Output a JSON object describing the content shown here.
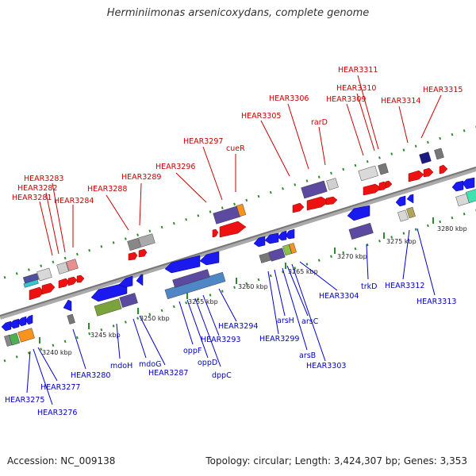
{
  "title": "Herminiimonas arsenicoxydans, complete genome",
  "footer": {
    "accession": "Accession: NC_009138",
    "topology": "Topology: circular; Length: 3,424,307 bp; Genes: 3,353"
  },
  "colors": {
    "forward_label": "#cc0000",
    "reverse_label": "#0000cc",
    "axis": "#888888",
    "dots": "#2e8b2e"
  },
  "ticks": [
    {
      "label": "3240 kbp"
    },
    {
      "label": "3245 kbp"
    },
    {
      "label": "3250 kbp"
    },
    {
      "label": "3255 kbp"
    },
    {
      "label": "3260 kbp"
    },
    {
      "label": "3265 kbp"
    },
    {
      "label": "3270 kbp"
    },
    {
      "label": "3275 kbp"
    },
    {
      "label": "3280 kbp"
    }
  ],
  "forward_labels": [
    "HEAR3283",
    "HEAR3282",
    "HEAR3281",
    "HEAR3284",
    "HEAR3288",
    "HEAR3289",
    "HEAR3296",
    "HEAR3297",
    "cueR",
    "HEAR3305",
    "HEAR3306",
    "rarD",
    "HEAR3309",
    "HEAR3310",
    "HEAR3311",
    "HEAR3314",
    "HEAR3315"
  ],
  "reverse_labels": [
    "HEAR3275",
    "HEAR3276",
    "HEAR3277",
    "HEAR3280",
    "mdoH",
    "mdoG",
    "HEAR3287",
    "oppF",
    "oppD",
    "dppC",
    "HEAR3293",
    "HEAR3294",
    "HEAR3299",
    "arsH",
    "arsC",
    "arsB",
    "HEAR3303",
    "HEAR3304",
    "trkD",
    "HEAR3312",
    "HEAR3313"
  ]
}
